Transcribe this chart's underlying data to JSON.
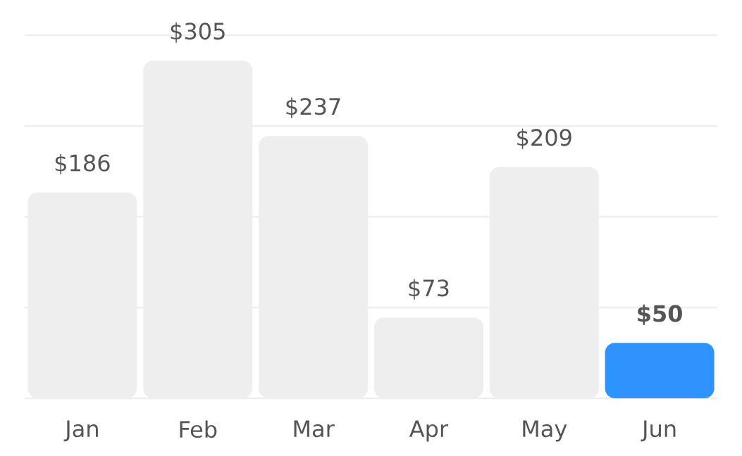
{
  "chart_data": {
    "type": "bar",
    "categories": [
      "Jan",
      "Feb",
      "Mar",
      "Apr",
      "May",
      "Jun"
    ],
    "values": [
      186,
      305,
      237,
      73,
      209,
      50
    ],
    "colors": [
      "#eeeeee",
      "#eeeeee",
      "#eeeeee",
      "#eeeeee",
      "#eeeeee",
      "#2f93fd"
    ],
    "value_labels": [
      "$186",
      "$305",
      "$237",
      "$73",
      "$209",
      "**$50**"
    ],
    "ylim": [
      0,
      328
    ],
    "yticks": [
      {
        "value": 0,
        "label": null
      },
      {
        "value": 82,
        "label": null
      },
      {
        "value": 164,
        "label": null
      },
      {
        "value": 246,
        "label": null
      },
      {
        "value": 328,
        "label": null
      }
    ],
    "grid": "y",
    "tick_labels": "x"
  }
}
